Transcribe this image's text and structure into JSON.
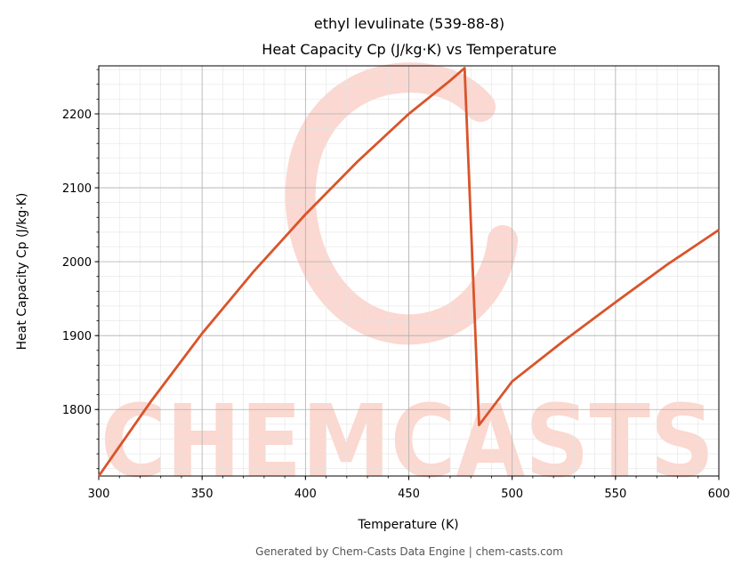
{
  "chart_data": {
    "type": "line",
    "title_line1": "ethyl levulinate (539-88-8)",
    "title_line2": "Heat Capacity Cp (J/kg·K) vs Temperature",
    "xlabel": "Temperature (K)",
    "ylabel": "Heat Capacity Cp (J/kg·K)",
    "xlim": [
      300,
      600
    ],
    "ylim": [
      1710,
      2265
    ],
    "xticks": [
      300,
      350,
      400,
      450,
      500,
      550,
      600
    ],
    "yticks": [
      1800,
      1900,
      2000,
      2100,
      2200
    ],
    "grid": true,
    "series": [
      {
        "color": "#d9542a",
        "x": [
          300,
          325,
          350,
          375,
          400,
          425,
          450,
          470,
          477,
          484,
          500,
          525,
          550,
          575,
          600
        ],
        "y": [
          1710,
          1810,
          1903,
          1987,
          2064,
          2135,
          2200,
          2245,
          2262,
          1779,
          1838,
          1893,
          1945,
          1996,
          2043
        ]
      }
    ]
  },
  "watermark": {
    "text": "CHEMCASTS",
    "color": "#fbd4cc"
  },
  "footer": "Generated by Chem-Casts Data Engine | chem-casts.com"
}
